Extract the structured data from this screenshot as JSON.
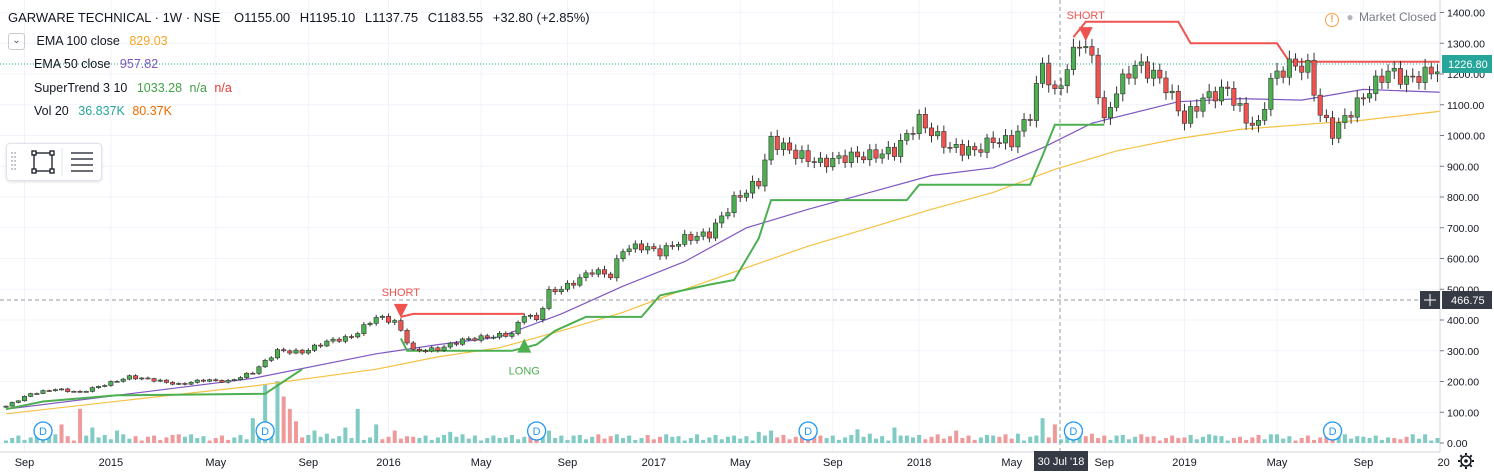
{
  "header": {
    "symbol": "GARWARE TECHNICAL · 1W · NSE",
    "ohlc": [
      {
        "k": "O",
        "v": "1155.00"
      },
      {
        "k": "H",
        "v": "1195.10"
      },
      {
        "k": "L",
        "v": "1137.75"
      },
      {
        "k": "C",
        "v": "1183.55"
      }
    ],
    "change": "+32.80 (+2.85%)"
  },
  "market_status": "Market Closed",
  "indicators": [
    {
      "name": "EMA 100 close",
      "values": [
        "829.03"
      ],
      "colors": [
        "#f5a623"
      ]
    },
    {
      "name": "EMA 50 close",
      "values": [
        "957.82"
      ],
      "colors": [
        "#7e57c2"
      ]
    },
    {
      "name": "SuperTrend 3 10",
      "values": [
        "1033.28",
        "n/a",
        "n/a"
      ],
      "colors": [
        "#43a047",
        "#43a047",
        "#e53935"
      ]
    },
    {
      "name": "Vol 20",
      "values": [
        "36.837K",
        "80.37K"
      ],
      "colors": [
        "#26a69a",
        "#ef6c00"
      ]
    }
  ],
  "colors": {
    "up": "#26a69a",
    "up_fill": "#4caf50",
    "down": "#ef5350",
    "supertrend_up": "#4caf50",
    "supertrend_down": "#ef5350",
    "ema100": "#f5c242",
    "ema50": "#7e57c2",
    "grid": "#f0f3fa",
    "axis_text": "#131722",
    "badge": "#363a45"
  },
  "chart_data": {
    "type": "candlestick",
    "interval": "1W",
    "exchange": "NSE",
    "yaxis": {
      "ticks": [
        0,
        100,
        200,
        300,
        400,
        500,
        600,
        700,
        800,
        900,
        1000,
        1100,
        1200,
        1300,
        1400
      ],
      "tick_labels": [
        "0.00",
        "100.00",
        "200.00",
        "300.00",
        "400.00",
        "500.00",
        "600.00",
        "700.00",
        "800.00",
        "900.00",
        "1000.00",
        "1100.00",
        "1200.00",
        "1300.00",
        "1400.00"
      ],
      "ylim": [
        -5,
        1410
      ],
      "scale": "linear"
    },
    "xaxis": {
      "range_weeks": [
        0,
        233
      ],
      "tick_labels": [
        {
          "label": "Sep",
          "week": 3
        },
        {
          "label": "2015",
          "week": 17
        },
        {
          "label": "May",
          "week": 34
        },
        {
          "label": "Sep",
          "week": 49
        },
        {
          "label": "2016",
          "week": 62
        },
        {
          "label": "May",
          "week": 77
        },
        {
          "label": "Sep",
          "week": 91
        },
        {
          "label": "2017",
          "week": 105
        },
        {
          "label": "May",
          "week": 119
        },
        {
          "label": "Sep",
          "week": 134
        },
        {
          "label": "2018",
          "week": 148
        },
        {
          "label": "May",
          "week": 163
        },
        {
          "label": "Sep",
          "week": 178
        },
        {
          "label": "2019",
          "week": 191
        },
        {
          "label": "May",
          "week": 206
        },
        {
          "label": "Sep",
          "week": 220
        },
        {
          "label": "20",
          "week": 233
        }
      ]
    },
    "crosshair": {
      "date_label": "30 Jul '18",
      "week": 173,
      "price_label": "466.75",
      "price": 466.75
    },
    "last_price": {
      "label": "1226.80",
      "price": 1226.8
    },
    "grid": true,
    "price_closes": [
      [
        0,
        120
      ],
      [
        4,
        160
      ],
      [
        8,
        175
      ],
      [
        12,
        165
      ],
      [
        16,
        190
      ],
      [
        20,
        215
      ],
      [
        24,
        205
      ],
      [
        28,
        190
      ],
      [
        32,
        205
      ],
      [
        36,
        200
      ],
      [
        40,
        230
      ],
      [
        44,
        300
      ],
      [
        48,
        295
      ],
      [
        52,
        330
      ],
      [
        56,
        345
      ],
      [
        60,
        410
      ],
      [
        63,
        395
      ],
      [
        66,
        300
      ],
      [
        70,
        305
      ],
      [
        74,
        335
      ],
      [
        78,
        345
      ],
      [
        82,
        355
      ],
      [
        84,
        420
      ],
      [
        86,
        400
      ],
      [
        88,
        490
      ],
      [
        91,
        510
      ],
      [
        95,
        560
      ],
      [
        98,
        545
      ],
      [
        100,
        630
      ],
      [
        103,
        640
      ],
      [
        106,
        620
      ],
      [
        110,
        665
      ],
      [
        114,
        680
      ],
      [
        118,
        790
      ],
      [
        122,
        850
      ],
      [
        124,
        985
      ],
      [
        128,
        940
      ],
      [
        132,
        910
      ],
      [
        136,
        930
      ],
      [
        140,
        935
      ],
      [
        144,
        950
      ],
      [
        148,
        1050
      ],
      [
        150,
        1010
      ],
      [
        153,
        960
      ],
      [
        157,
        950
      ],
      [
        160,
        985
      ],
      [
        163,
        980
      ],
      [
        166,
        1070
      ],
      [
        168,
        1235
      ],
      [
        170,
        1130
      ],
      [
        172,
        1220
      ],
      [
        174,
        1310
      ],
      [
        176,
        1250
      ],
      [
        178,
        1040
      ],
      [
        180,
        1150
      ],
      [
        183,
        1230
      ],
      [
        186,
        1200
      ],
      [
        188,
        1160
      ],
      [
        191,
        1050
      ],
      [
        194,
        1120
      ],
      [
        198,
        1150
      ],
      [
        201,
        1050
      ],
      [
        203,
        1030
      ],
      [
        205,
        1180
      ],
      [
        208,
        1230
      ],
      [
        211,
        1220
      ],
      [
        213,
        1070
      ],
      [
        215,
        1010
      ],
      [
        218,
        1080
      ],
      [
        221,
        1150
      ],
      [
        224,
        1210
      ],
      [
        227,
        1180
      ],
      [
        230,
        1200
      ],
      [
        233,
        1226.8
      ]
    ],
    "ema100": [
      [
        0,
        95
      ],
      [
        20,
        140
      ],
      [
        40,
        185
      ],
      [
        60,
        240
      ],
      [
        70,
        280
      ],
      [
        80,
        310
      ],
      [
        90,
        365
      ],
      [
        100,
        425
      ],
      [
        110,
        500
      ],
      [
        120,
        570
      ],
      [
        130,
        640
      ],
      [
        140,
        700
      ],
      [
        150,
        760
      ],
      [
        160,
        815
      ],
      [
        170,
        890
      ],
      [
        180,
        950
      ],
      [
        190,
        990
      ],
      [
        200,
        1020
      ],
      [
        210,
        1035
      ],
      [
        220,
        1050
      ],
      [
        233,
        1080
      ]
    ],
    "ema50": [
      [
        0,
        110
      ],
      [
        20,
        160
      ],
      [
        40,
        210
      ],
      [
        60,
        290
      ],
      [
        70,
        320
      ],
      [
        80,
        345
      ],
      [
        90,
        420
      ],
      [
        100,
        510
      ],
      [
        110,
        590
      ],
      [
        120,
        700
      ],
      [
        130,
        760
      ],
      [
        140,
        815
      ],
      [
        150,
        870
      ],
      [
        160,
        895
      ],
      [
        168,
        960
      ],
      [
        176,
        1040
      ],
      [
        190,
        1110
      ],
      [
        200,
        1120
      ],
      [
        210,
        1115
      ],
      [
        220,
        1150
      ],
      [
        233,
        1140
      ]
    ],
    "supertrend_long": [
      [
        0,
        110
      ],
      [
        6,
        135
      ],
      [
        18,
        155
      ],
      [
        42,
        160
      ],
      [
        45,
        200
      ],
      [
        48,
        240
      ],
      [
        59,
        265
      ],
      [
        64,
        340
      ],
      [
        65,
        300
      ],
      [
        82,
        300
      ],
      [
        86,
        320
      ],
      [
        89,
        365
      ],
      [
        94,
        410
      ],
      [
        103,
        410
      ],
      [
        106,
        480
      ],
      [
        114,
        515
      ],
      [
        118,
        530
      ],
      [
        122,
        665
      ],
      [
        124,
        790
      ],
      [
        136,
        790
      ],
      [
        146,
        790
      ],
      [
        148,
        840
      ],
      [
        166,
        840
      ],
      [
        168,
        935
      ],
      [
        170,
        1035
      ],
      [
        178,
        1035
      ]
    ],
    "supertrend_short": [
      [
        64,
        410
      ],
      [
        66,
        420
      ],
      [
        84,
        420
      ],
      [
        173,
        1320
      ],
      [
        175,
        1370
      ],
      [
        190,
        1370
      ],
      [
        192,
        1300
      ],
      [
        206,
        1300
      ],
      [
        208,
        1240
      ],
      [
        233,
        1240
      ]
    ],
    "signals": [
      {
        "label": "SHORT",
        "type": "short",
        "week": 64,
        "price": 420
      },
      {
        "label": "LONG",
        "type": "long",
        "week": 84,
        "price": 320
      },
      {
        "label": "SHORT",
        "type": "short",
        "week": 175,
        "price": 1320
      }
    ],
    "dividends": {
      "label": "D",
      "weeks": [
        6,
        42,
        86,
        130,
        173,
        215
      ]
    },
    "volume_bars": [
      {
        "week": 2,
        "v": 12
      },
      {
        "week": 5,
        "v": 18
      },
      {
        "week": 9,
        "v": 30
      },
      {
        "week": 12,
        "v": 55
      },
      {
        "week": 14,
        "v": 25
      },
      {
        "week": 18,
        "v": 20
      },
      {
        "week": 23,
        "v": 10
      },
      {
        "week": 28,
        "v": 14
      },
      {
        "week": 31,
        "v": 8
      },
      {
        "week": 35,
        "v": 12
      },
      {
        "week": 40,
        "v": 40
      },
      {
        "week": 42,
        "v": 95
      },
      {
        "week": 44,
        "v": 100
      },
      {
        "week": 45,
        "v": 75
      },
      {
        "week": 46,
        "v": 55
      },
      {
        "week": 47,
        "v": 35
      },
      {
        "week": 50,
        "v": 20
      },
      {
        "week": 52,
        "v": 15
      },
      {
        "week": 55,
        "v": 25
      },
      {
        "week": 57,
        "v": 55
      },
      {
        "week": 60,
        "v": 30
      },
      {
        "week": 63,
        "v": 20
      },
      {
        "week": 66,
        "v": 10
      },
      {
        "week": 72,
        "v": 18
      },
      {
        "week": 76,
        "v": 12
      },
      {
        "week": 80,
        "v": 8
      },
      {
        "week": 85,
        "v": 22
      },
      {
        "week": 88,
        "v": 20
      },
      {
        "week": 92,
        "v": 12
      },
      {
        "week": 95,
        "v": 10
      },
      {
        "week": 99,
        "v": 14
      },
      {
        "week": 103,
        "v": 8
      },
      {
        "week": 108,
        "v": 10
      },
      {
        "week": 112,
        "v": 14
      },
      {
        "week": 118,
        "v": 12
      },
      {
        "week": 122,
        "v": 18
      },
      {
        "week": 124,
        "v": 20
      },
      {
        "week": 128,
        "v": 10
      },
      {
        "week": 132,
        "v": 12
      },
      {
        "week": 138,
        "v": 22
      },
      {
        "week": 140,
        "v": 15
      },
      {
        "week": 144,
        "v": 25
      },
      {
        "week": 146,
        "v": 12
      },
      {
        "week": 150,
        "v": 10
      },
      {
        "week": 154,
        "v": 20
      },
      {
        "week": 160,
        "v": 12
      },
      {
        "week": 164,
        "v": 15
      },
      {
        "week": 166,
        "v": 10
      },
      {
        "week": 168,
        "v": 40
      },
      {
        "week": 170,
        "v": 30
      },
      {
        "week": 174,
        "v": 25
      },
      {
        "week": 176,
        "v": 15
      },
      {
        "week": 180,
        "v": 12
      },
      {
        "week": 185,
        "v": 10
      },
      {
        "week": 190,
        "v": 8
      },
      {
        "week": 196,
        "v": 12
      },
      {
        "week": 200,
        "v": 10
      },
      {
        "week": 205,
        "v": 14
      },
      {
        "week": 210,
        "v": 8
      },
      {
        "week": 215,
        "v": 12
      },
      {
        "week": 220,
        "v": 10
      },
      {
        "week": 225,
        "v": 8
      },
      {
        "week": 230,
        "v": 14
      }
    ]
  }
}
